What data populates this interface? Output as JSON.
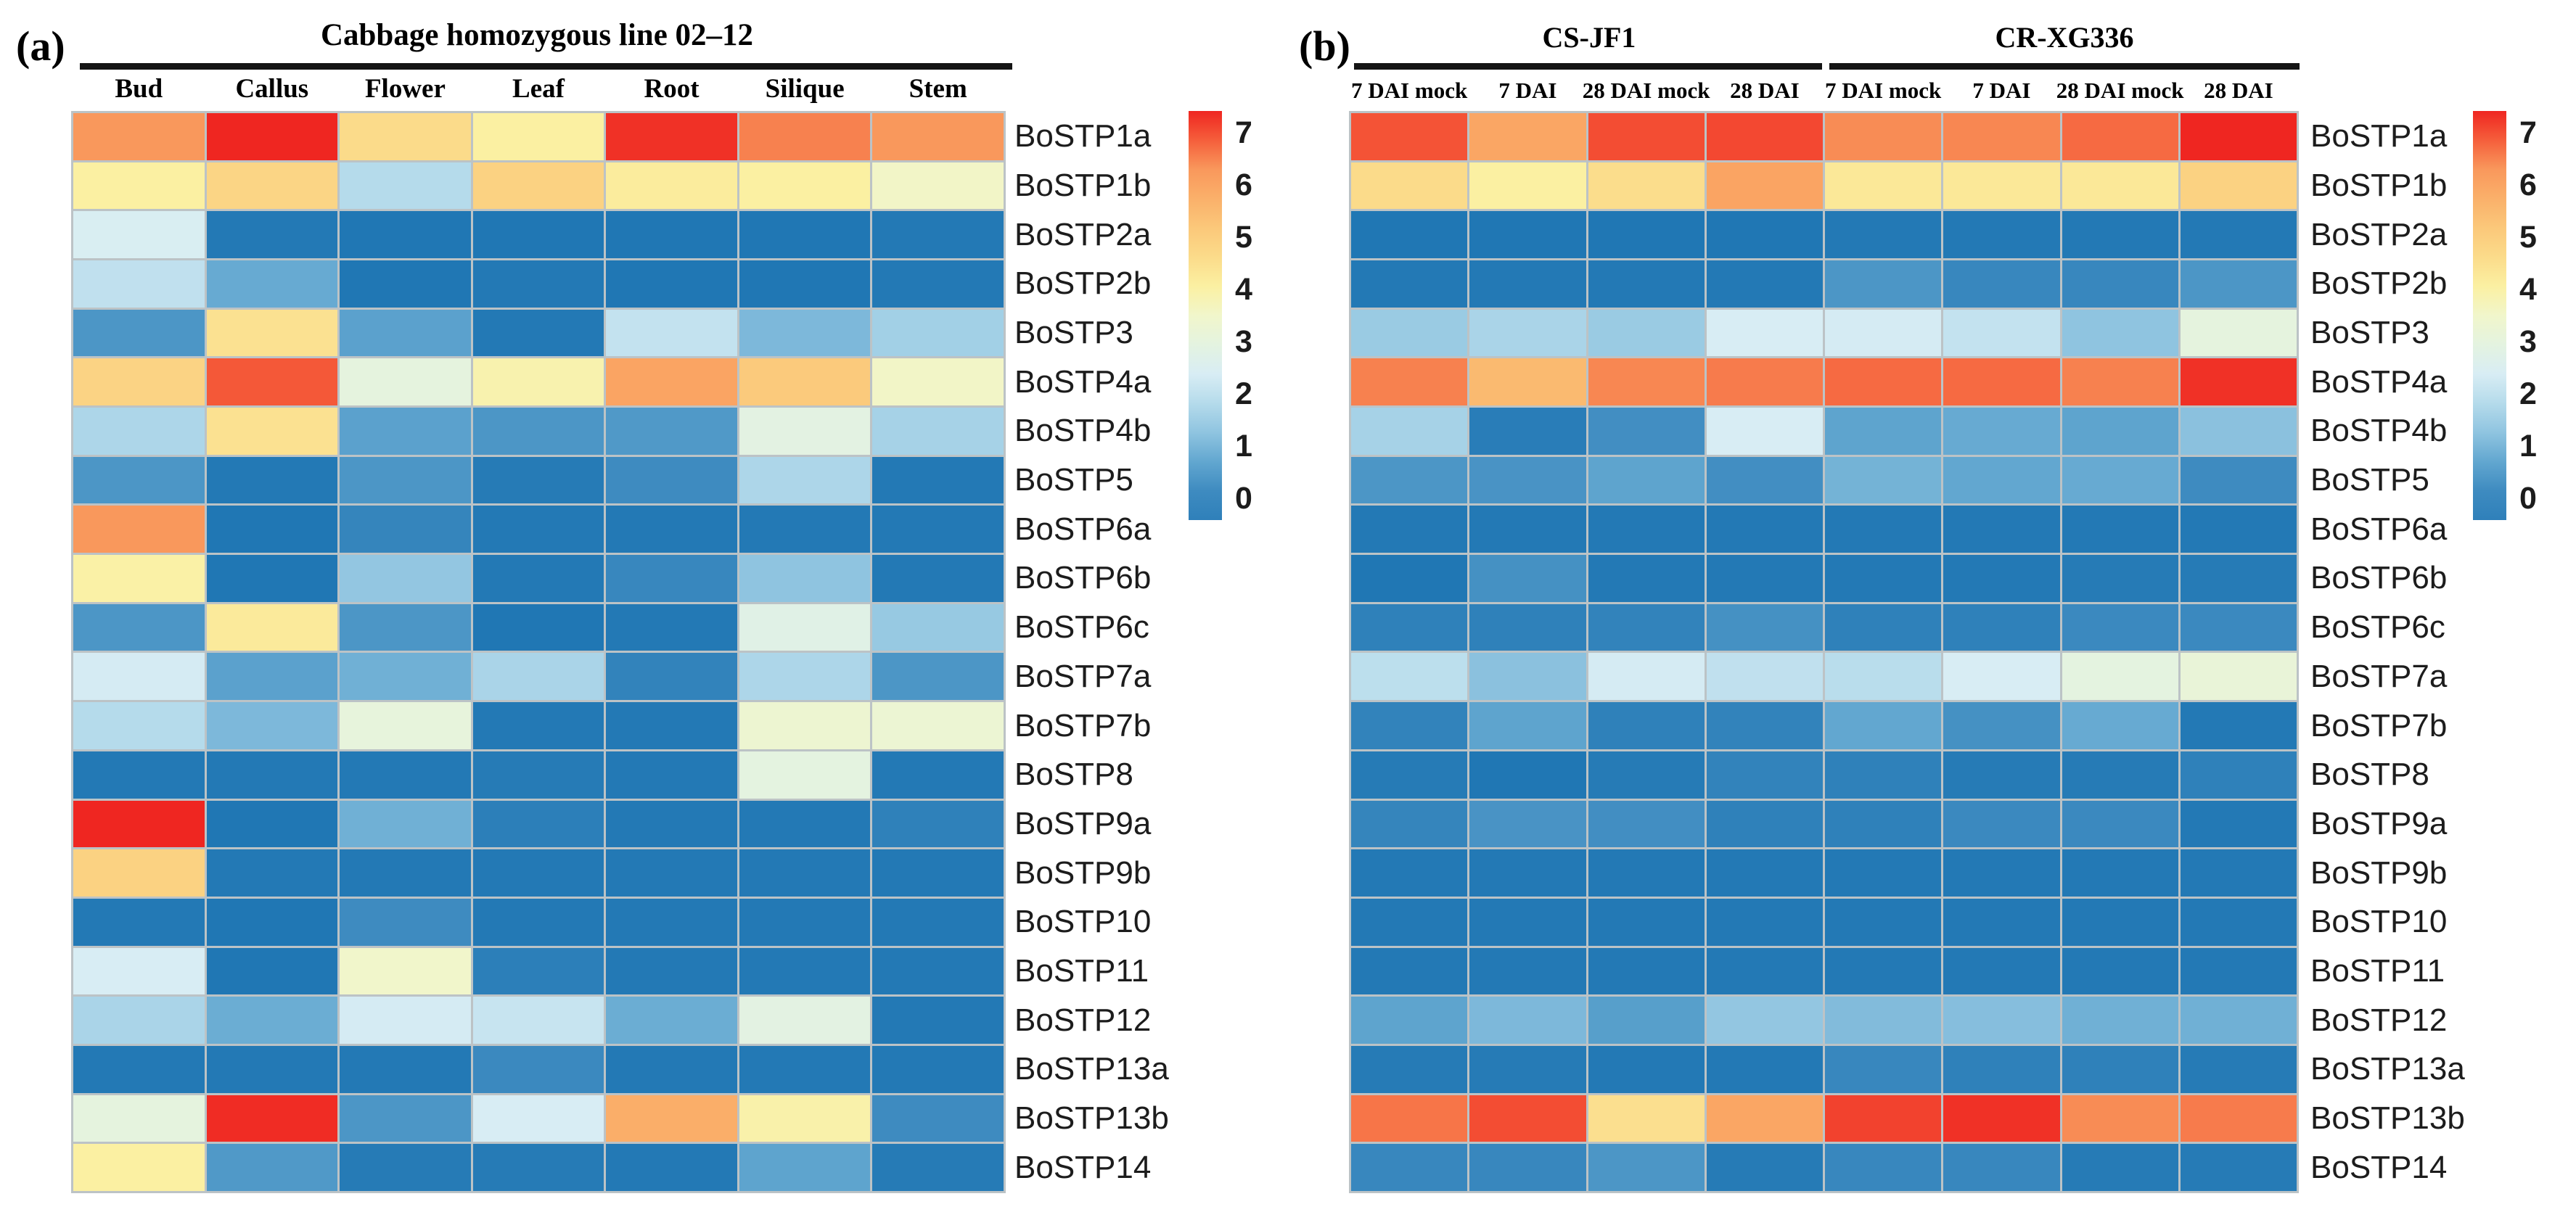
{
  "figure": {
    "background": "#ffffff",
    "panels": {
      "a": {
        "tag": "(a)",
        "title": "Cabbage homozygous line 02–12"
      },
      "b": {
        "tag": "(b)",
        "groups": [
          "CS-JF1",
          "CR-XG336"
        ]
      }
    }
  },
  "color_scale": {
    "min": 0,
    "max": 7,
    "ticks": [
      "7",
      "6",
      "5",
      "4",
      "3",
      "2",
      "1",
      "0"
    ],
    "stops": [
      {
        "value": 0.0,
        "color": "#2077B4"
      },
      {
        "value": 0.5,
        "color": "#3E8BC0"
      },
      {
        "value": 1.0,
        "color": "#62A7D0"
      },
      {
        "value": 1.5,
        "color": "#8FC4E0"
      },
      {
        "value": 2.0,
        "color": "#B5DBEB"
      },
      {
        "value": 2.5,
        "color": "#D8EDF4"
      },
      {
        "value": 3.0,
        "color": "#E4F3E0"
      },
      {
        "value": 3.5,
        "color": "#F1F6CB"
      },
      {
        "value": 4.0,
        "color": "#FBF0A2"
      },
      {
        "value": 4.5,
        "color": "#FBDB8A"
      },
      {
        "value": 5.0,
        "color": "#FBC87A"
      },
      {
        "value": 5.5,
        "color": "#FAB06A"
      },
      {
        "value": 6.0,
        "color": "#F9985C"
      },
      {
        "value": 6.5,
        "color": "#F55E3B"
      },
      {
        "value": 7.0,
        "color": "#EF2621"
      }
    ],
    "colorbar_bottom_color": "#2F80BA"
  },
  "chart_data": [
    {
      "type": "heatmap",
      "panel": "a",
      "title": "Cabbage homozygous line 02–12",
      "x_labels": [
        "Bud",
        "Callus",
        "Flower",
        "Leaf",
        "Root",
        "Silique",
        "Stem"
      ],
      "y_labels": [
        "BoSTP1a",
        "BoSTP1b",
        "BoSTP2a",
        "BoSTP2b",
        "BoSTP3",
        "BoSTP4a",
        "BoSTP4b",
        "BoSTP5",
        "BoSTP6a",
        "BoSTP6b",
        "BoSTP6c",
        "BoSTP7a",
        "BoSTP7b",
        "BoSTP8",
        "BoSTP9a",
        "BoSTP9b",
        "BoSTP10",
        "BoSTP11",
        "BoSTP12",
        "BoSTP13a",
        "BoSTP13b",
        "BoSTP14"
      ],
      "value_range": [
        0,
        7
      ],
      "legend_position": "right",
      "values": [
        [
          6.0,
          7.0,
          4.5,
          4.0,
          6.9,
          6.2,
          6.0
        ],
        [
          4.0,
          4.65,
          2.0,
          4.75,
          4.1,
          4.0,
          3.55
        ],
        [
          2.55,
          0.05,
          0.0,
          0.0,
          0.0,
          0.0,
          0.05
        ],
        [
          2.15,
          1.05,
          0.0,
          0.05,
          0.0,
          0.0,
          0.05
        ],
        [
          0.7,
          4.35,
          0.9,
          0.05,
          2.2,
          1.3,
          1.75
        ],
        [
          4.7,
          6.55,
          3.05,
          3.85,
          5.75,
          4.95,
          3.55
        ],
        [
          1.9,
          4.35,
          0.9,
          0.7,
          0.75,
          2.95,
          1.8
        ],
        [
          0.7,
          0.05,
          0.7,
          0.1,
          0.5,
          1.9,
          0.05
        ],
        [
          6.0,
          0.0,
          0.35,
          0.05,
          0.05,
          0.05,
          0.05
        ],
        [
          3.95,
          0.0,
          1.55,
          0.05,
          0.4,
          1.5,
          0.05
        ],
        [
          0.7,
          4.15,
          0.7,
          0.0,
          0.05,
          2.85,
          1.6
        ],
        [
          2.45,
          0.9,
          1.15,
          1.85,
          0.3,
          1.9,
          0.7
        ],
        [
          2.0,
          1.3,
          3.1,
          0.05,
          0.05,
          3.35,
          3.3
        ],
        [
          0.05,
          0.05,
          0.05,
          0.1,
          0.05,
          3.0,
          0.05
        ],
        [
          7.0,
          0.0,
          1.15,
          0.2,
          0.05,
          0.05,
          0.25
        ],
        [
          4.75,
          0.05,
          0.05,
          0.05,
          0.05,
          0.05,
          0.05
        ],
        [
          0.05,
          0.0,
          0.5,
          0.05,
          0.05,
          0.05,
          0.05
        ],
        [
          2.5,
          0.0,
          3.5,
          0.2,
          0.05,
          0.05,
          0.05
        ],
        [
          1.85,
          1.1,
          2.45,
          2.25,
          1.1,
          2.95,
          0.05
        ],
        [
          0.05,
          0.05,
          0.05,
          0.45,
          0.05,
          0.05,
          0.05
        ],
        [
          3.05,
          6.95,
          0.7,
          2.5,
          5.55,
          3.9,
          0.5
        ],
        [
          4.0,
          0.75,
          0.1,
          0.1,
          0.05,
          0.95,
          0.1
        ]
      ]
    },
    {
      "type": "heatmap",
      "panel": "b",
      "column_groups": [
        {
          "label": "CS-JF1",
          "span": 4
        },
        {
          "label": "CR-XG336",
          "span": 4
        }
      ],
      "x_labels": [
        "7 DAI mock",
        "7 DAI",
        "28 DAI mock",
        "28 DAI",
        "7 DAI mock",
        "7 DAI",
        "28 DAI mock",
        "28 DAI"
      ],
      "y_labels": [
        "BoSTP1a",
        "BoSTP1b",
        "BoSTP2a",
        "BoSTP2b",
        "BoSTP3",
        "BoSTP4a",
        "BoSTP4b",
        "BoSTP5",
        "BoSTP6a",
        "BoSTP6b",
        "BoSTP6c",
        "BoSTP7a",
        "BoSTP7b",
        "BoSTP8",
        "BoSTP9a",
        "BoSTP9b",
        "BoSTP10",
        "BoSTP11",
        "BoSTP12",
        "BoSTP13a",
        "BoSTP13b",
        "BoSTP14"
      ],
      "value_range": [
        0,
        7
      ],
      "legend_position": "right",
      "values": [
        [
          6.6,
          5.7,
          6.65,
          6.7,
          6.1,
          6.15,
          6.4,
          7.0
        ],
        [
          4.5,
          4.0,
          4.45,
          5.75,
          4.2,
          4.2,
          4.2,
          4.75
        ],
        [
          0.0,
          0.0,
          0.0,
          0.0,
          0.05,
          0.05,
          0.05,
          0.05
        ],
        [
          0.05,
          0.05,
          0.05,
          0.05,
          0.7,
          0.4,
          0.4,
          0.7
        ],
        [
          1.65,
          1.85,
          1.65,
          2.5,
          2.45,
          2.2,
          1.5,
          3.05
        ],
        [
          6.2,
          5.3,
          6.15,
          6.25,
          6.4,
          6.4,
          6.2,
          6.9
        ],
        [
          1.8,
          0.15,
          0.55,
          2.5,
          0.95,
          1.05,
          0.95,
          1.45
        ],
        [
          0.7,
          0.65,
          0.95,
          0.55,
          1.2,
          1.0,
          1.05,
          0.5
        ],
        [
          0.05,
          0.05,
          0.05,
          0.05,
          0.05,
          0.05,
          0.05,
          0.05
        ],
        [
          0.0,
          0.6,
          0.05,
          0.05,
          0.05,
          0.05,
          0.1,
          0.1
        ],
        [
          0.25,
          0.25,
          0.3,
          0.6,
          0.25,
          0.25,
          0.45,
          0.45
        ],
        [
          2.1,
          1.45,
          2.45,
          2.15,
          2.05,
          2.5,
          3.0,
          3.2
        ],
        [
          0.3,
          0.95,
          0.25,
          0.3,
          1.0,
          0.6,
          1.05,
          0.05
        ],
        [
          0.1,
          0.0,
          0.1,
          0.3,
          0.25,
          0.1,
          0.1,
          0.25
        ],
        [
          0.35,
          0.65,
          0.55,
          0.25,
          0.25,
          0.45,
          0.45,
          0.05
        ],
        [
          0.05,
          0.05,
          0.05,
          0.05,
          0.05,
          0.05,
          0.05,
          0.05
        ],
        [
          0.05,
          0.05,
          0.05,
          0.05,
          0.05,
          0.05,
          0.05,
          0.05
        ],
        [
          0.05,
          0.05,
          0.05,
          0.05,
          0.05,
          0.05,
          0.05,
          0.05
        ],
        [
          0.95,
          1.3,
          0.85,
          1.55,
          1.35,
          1.4,
          1.15,
          1.15
        ],
        [
          0.1,
          0.1,
          0.05,
          0.05,
          0.4,
          0.25,
          0.25,
          0.1
        ],
        [
          6.3,
          6.65,
          4.4,
          5.7,
          6.75,
          6.9,
          6.1,
          6.25
        ],
        [
          0.4,
          0.4,
          0.7,
          0.1,
          0.4,
          0.4,
          0.1,
          0.1
        ]
      ]
    }
  ]
}
